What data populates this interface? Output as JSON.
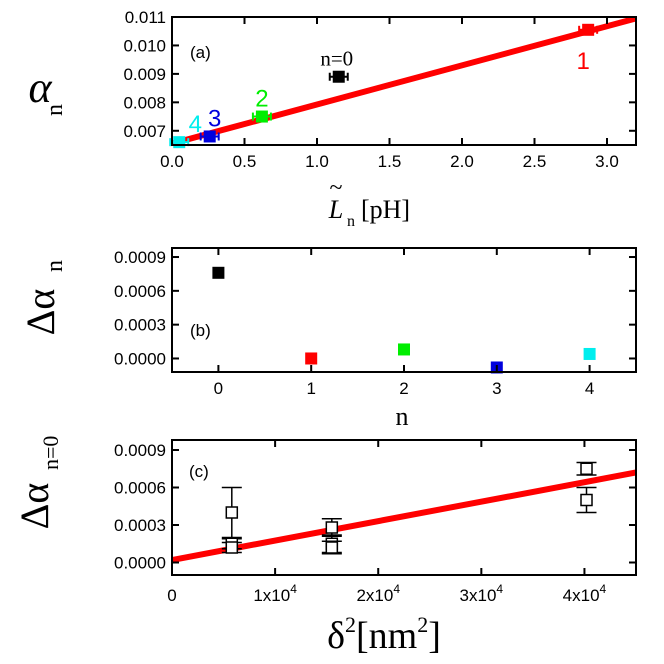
{
  "chart_data": [
    {
      "panel": "(a)",
      "type": "scatter",
      "xlabel": "L̃n[pH]",
      "ylabel": "αn",
      "xlim": [
        0.0,
        3.2
      ],
      "ylim": [
        0.0065,
        0.011
      ],
      "xticks": [
        "0.0",
        "0.5",
        "1.0",
        "1.5",
        "2.0",
        "2.5",
        "3.0"
      ],
      "xtick_values": [
        0.0,
        0.5,
        1.0,
        1.5,
        2.0,
        2.5,
        3.0
      ],
      "yticks": [
        "0.007",
        "0.008",
        "0.009",
        "0.010",
        "0.011"
      ],
      "ytick_values": [
        0.007,
        0.008,
        0.009,
        0.01,
        0.011
      ],
      "points": [
        {
          "label": "n=0",
          "x": 1.15,
          "y": 0.0089,
          "color": "#000000"
        },
        {
          "label": "1",
          "x": 2.87,
          "y": 0.01055,
          "color": "#ff0000"
        },
        {
          "label": "2",
          "x": 0.62,
          "y": 0.0075,
          "color": "#00ee00"
        },
        {
          "label": "3",
          "x": 0.26,
          "y": 0.0068,
          "color": "#0000dd"
        },
        {
          "label": "4",
          "x": 0.05,
          "y": 0.0066,
          "color": "#00eeee"
        }
      ],
      "fit_line": {
        "x": [
          0.0,
          3.2
        ],
        "y": [
          0.00655,
          0.01095
        ],
        "color": "#ff0000"
      }
    },
    {
      "panel": "(b)",
      "type": "scatter",
      "xlabel": "n",
      "ylabel": "Δαn",
      "xlim": [
        -0.5,
        4.5
      ],
      "ylim": [
        -0.00012,
        0.00098
      ],
      "xticks": [
        "0",
        "1",
        "2",
        "3",
        "4"
      ],
      "xtick_values": [
        0,
        1,
        2,
        3,
        4
      ],
      "yticks": [
        "0.0000",
        "0.0003",
        "0.0006",
        "0.0009"
      ],
      "ytick_values": [
        0.0,
        0.0003,
        0.0006,
        0.0009
      ],
      "points": [
        {
          "x": 0,
          "y": 0.00076,
          "color": "#000000"
        },
        {
          "x": 1,
          "y": 0.0,
          "color": "#ff0000"
        },
        {
          "x": 2,
          "y": 8e-05,
          "color": "#00ee00"
        },
        {
          "x": 3,
          "y": -8e-05,
          "color": "#0000dd"
        },
        {
          "x": 4,
          "y": 4e-05,
          "color": "#00eeee"
        }
      ]
    },
    {
      "panel": "(c)",
      "type": "scatter",
      "xlabel": "δ2[nm2]",
      "ylabel": "Δαn=0",
      "xlim": [
        0,
        45000
      ],
      "ylim": [
        -0.0001,
        0.00098
      ],
      "xticks": [
        "0",
        "1x104",
        "2x104",
        "3x104",
        "4x104"
      ],
      "xtick_values": [
        0,
        10000,
        20000,
        30000,
        40000
      ],
      "yticks": [
        "0.0000",
        "0.0003",
        "0.0006",
        "0.0009"
      ],
      "ytick_values": [
        0.0,
        0.0003,
        0.0006,
        0.0009
      ],
      "points": [
        {
          "x": 5800,
          "y": 0.0004,
          "err": 0.0002
        },
        {
          "x": 5800,
          "y": 0.00015,
          "err": 4e-05
        },
        {
          "x": 5800,
          "y": 0.00012,
          "err": 4e-05
        },
        {
          "x": 15500,
          "y": 0.00028,
          "err": 7e-05
        },
        {
          "x": 15500,
          "y": 0.00015,
          "err": 7e-05
        },
        {
          "x": 15500,
          "y": 0.00012,
          "err": 5e-05
        },
        {
          "x": 40200,
          "y": 0.00075,
          "err": 5e-05
        },
        {
          "x": 40200,
          "y": 0.0005,
          "err": 0.0001
        }
      ],
      "fit_line": {
        "x": [
          0,
          45000
        ],
        "y": [
          2e-05,
          0.00072
        ],
        "color": "#ff0000"
      }
    }
  ]
}
